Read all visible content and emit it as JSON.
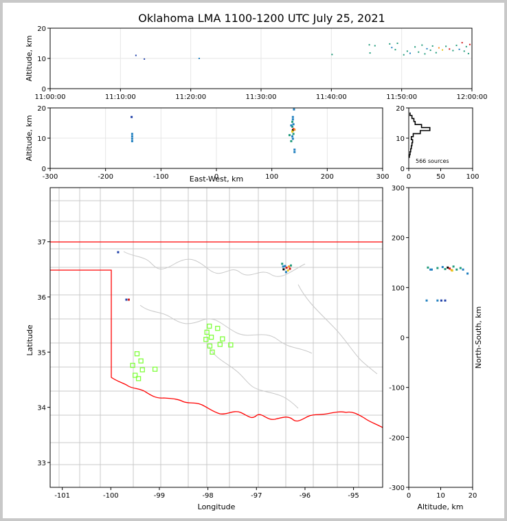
{
  "title": "Oklahoma LMA 1100-1200 UTC July 25, 2021",
  "colors": {
    "border": "#ff0000",
    "county": "#c8c8c8",
    "station": "#7fff3a",
    "grid": "#e6e6e6"
  },
  "source_count_label": "566 sources",
  "chart_data": [
    {
      "name": "time-altitude",
      "type": "scatter",
      "xlabel": "",
      "ylabel": "Altitude, km",
      "x_tick_labels": [
        "11:00:00",
        "11:10:00",
        "11:20:00",
        "11:30:00",
        "11:40:00",
        "11:50:00",
        "12:00:00"
      ],
      "xlim_minutes_after_1100": [
        0,
        60
      ],
      "ylim": [
        0,
        20
      ],
      "y_ticks": [
        0,
        10,
        20
      ],
      "points": [
        {
          "t": 12.2,
          "alt": 11.0,
          "c": "#1f3fa8"
        },
        {
          "t": 13.4,
          "alt": 9.8,
          "c": "#1f3fa8"
        },
        {
          "t": 21.2,
          "alt": 10.0,
          "c": "#1f7fbf"
        },
        {
          "t": 40.1,
          "alt": 11.3,
          "c": "#1f9a7a"
        },
        {
          "t": 45.4,
          "alt": 14.5,
          "c": "#1f9a7a"
        },
        {
          "t": 45.5,
          "alt": 11.8,
          "c": "#1f9a7a"
        },
        {
          "t": 46.2,
          "alt": 14.2,
          "c": "#1f9a7a"
        },
        {
          "t": 48.3,
          "alt": 14.8,
          "c": "#1f9a7a"
        },
        {
          "t": 48.6,
          "alt": 13.6,
          "c": "#1f7fbf"
        },
        {
          "t": 49.1,
          "alt": 12.9,
          "c": "#1f9a7a"
        },
        {
          "t": 49.4,
          "alt": 15.0,
          "c": "#1f9a7a"
        },
        {
          "t": 50.3,
          "alt": 11.2,
          "c": "#1f9a7a"
        },
        {
          "t": 50.8,
          "alt": 12.4,
          "c": "#1f9a7a"
        },
        {
          "t": 51.2,
          "alt": 11.7,
          "c": "#1f7fbf"
        },
        {
          "t": 51.9,
          "alt": 13.8,
          "c": "#1f9a7a"
        },
        {
          "t": 52.4,
          "alt": 12.1,
          "c": "#1f9a7a"
        },
        {
          "t": 52.9,
          "alt": 14.4,
          "c": "#1f9a7a"
        },
        {
          "t": 53.3,
          "alt": 11.5,
          "c": "#1f9a7a"
        },
        {
          "t": 53.6,
          "alt": 13.2,
          "c": "#1f7fbf"
        },
        {
          "t": 54.1,
          "alt": 12.7,
          "c": "#1f9a7a"
        },
        {
          "t": 54.4,
          "alt": 14.1,
          "c": "#1f9a7a"
        },
        {
          "t": 54.9,
          "alt": 11.9,
          "c": "#1f9a7a"
        },
        {
          "t": 55.3,
          "alt": 13.5,
          "c": "#ff8c1a"
        },
        {
          "t": 55.8,
          "alt": 12.8,
          "c": "#e8c81a"
        },
        {
          "t": 56.3,
          "alt": 14.0,
          "c": "#1f9a7a"
        },
        {
          "t": 56.8,
          "alt": 13.1,
          "c": "#d01818"
        },
        {
          "t": 57.3,
          "alt": 12.6,
          "c": "#1f9a7a"
        },
        {
          "t": 57.8,
          "alt": 14.3,
          "c": "#1f9a7a"
        },
        {
          "t": 58.2,
          "alt": 13.0,
          "c": "#1f7fbf"
        },
        {
          "t": 58.6,
          "alt": 15.2,
          "c": "#d01818"
        },
        {
          "t": 58.9,
          "alt": 12.4,
          "c": "#1f9a7a"
        },
        {
          "t": 59.2,
          "alt": 13.9,
          "c": "#1f9a7a"
        },
        {
          "t": 59.5,
          "alt": 11.6,
          "c": "#1f9a7a"
        },
        {
          "t": 59.7,
          "alt": 14.6,
          "c": "#d01818"
        }
      ]
    },
    {
      "name": "ew-altitude",
      "type": "scatter",
      "xlabel": "East-West, km",
      "ylabel": "Altitude, km",
      "xlim": [
        -300,
        300
      ],
      "x_ticks": [
        -300,
        -200,
        -100,
        0,
        100,
        200,
        300
      ],
      "ylim": [
        0,
        20
      ],
      "y_ticks": [
        0,
        10,
        20
      ],
      "points": [
        {
          "x": -153,
          "alt": 17.0,
          "c": "#1f3fa8"
        },
        {
          "x": -152,
          "alt": 11.4,
          "c": "#1f7fbf"
        },
        {
          "x": -152,
          "alt": 10.6,
          "c": "#1f7fbf"
        },
        {
          "x": -152,
          "alt": 9.8,
          "c": "#1f7fbf"
        },
        {
          "x": -152,
          "alt": 9.0,
          "c": "#1f7fbf"
        },
        {
          "x": 140,
          "alt": 19.5,
          "c": "#1f7fbf"
        },
        {
          "x": 138,
          "alt": 17.0,
          "c": "#1f7fbf"
        },
        {
          "x": 138,
          "alt": 16.2,
          "c": "#1f7fbf"
        },
        {
          "x": 137,
          "alt": 15.4,
          "c": "#1f9a7a"
        },
        {
          "x": 139,
          "alt": 14.6,
          "c": "#1f7fbf"
        },
        {
          "x": 137,
          "alt": 13.8,
          "c": "#1f9a7a"
        },
        {
          "x": 139,
          "alt": 13.0,
          "c": "#d01818"
        },
        {
          "x": 138,
          "alt": 12.6,
          "c": "#000000"
        },
        {
          "x": 137,
          "alt": 12.2,
          "c": "#e8c81a"
        },
        {
          "x": 139,
          "alt": 11.4,
          "c": "#1f9a7a"
        },
        {
          "x": 137,
          "alt": 10.6,
          "c": "#1f7fbf"
        },
        {
          "x": 138,
          "alt": 9.8,
          "c": "#1f7fbf"
        },
        {
          "x": 135,
          "alt": 9.0,
          "c": "#1f9a7a"
        },
        {
          "x": 141,
          "alt": 6.2,
          "c": "#1f7fbf"
        },
        {
          "x": 141,
          "alt": 5.4,
          "c": "#1f7fbf"
        },
        {
          "x": 132,
          "alt": 11.0,
          "c": "#1f9a7a"
        },
        {
          "x": 135,
          "alt": 14.2,
          "c": "#1f7fbf"
        },
        {
          "x": 141,
          "alt": 12.8,
          "c": "#ff8c1a"
        }
      ]
    },
    {
      "name": "altitude-histogram",
      "type": "line",
      "xlabel": "",
      "ylabel": "",
      "xlim": [
        0,
        100
      ],
      "x_ticks": [
        0,
        50,
        100
      ],
      "ylim": [
        0,
        20
      ],
      "y_ticks": [
        0,
        10,
        20
      ],
      "altitude_km": [
        4,
        5,
        6,
        7,
        8,
        9,
        10,
        11,
        12,
        13,
        14,
        15,
        16,
        17,
        18
      ],
      "counts": [
        1,
        2,
        3,
        4,
        5,
        6,
        4,
        7,
        18,
        33,
        20,
        10,
        8,
        5,
        2
      ]
    },
    {
      "name": "plan-view-map",
      "type": "scatter",
      "xlabel": "Longitude",
      "ylabel": "Latitude",
      "xlim": [
        -101.25,
        -94.4
      ],
      "x_ticks": [
        -101,
        -100,
        -99,
        -98,
        -97,
        -96,
        -95
      ],
      "ylim": [
        32.55,
        37.98
      ],
      "y_ticks": [
        33,
        34,
        35,
        36,
        37
      ],
      "stations": [
        {
          "lon": -99.46,
          "lat": 34.97
        },
        {
          "lon": -99.38,
          "lat": 34.84
        },
        {
          "lon": -99.55,
          "lat": 34.76
        },
        {
          "lon": -99.35,
          "lat": 34.68
        },
        {
          "lon": -99.09,
          "lat": 34.69
        },
        {
          "lon": -99.5,
          "lat": 34.58
        },
        {
          "lon": -99.43,
          "lat": 34.52
        },
        {
          "lon": -97.97,
          "lat": 35.47
        },
        {
          "lon": -98.02,
          "lat": 35.36
        },
        {
          "lon": -97.93,
          "lat": 35.27
        },
        {
          "lon": -98.04,
          "lat": 35.23
        },
        {
          "lon": -97.8,
          "lat": 35.43
        },
        {
          "lon": -97.7,
          "lat": 35.24
        },
        {
          "lon": -97.96,
          "lat": 35.11
        },
        {
          "lon": -97.75,
          "lat": 35.14
        },
        {
          "lon": -97.53,
          "lat": 35.13
        },
        {
          "lon": -97.91,
          "lat": 35.0
        }
      ],
      "sources": [
        {
          "lon": -99.85,
          "lat": 36.81,
          "c": "#1f3fa8"
        },
        {
          "lon": -99.68,
          "lat": 35.95,
          "c": "#1f3fa8"
        },
        {
          "lon": -99.63,
          "lat": 35.95,
          "c": "#d01818"
        },
        {
          "lon": -96.47,
          "lat": 36.6,
          "c": "#1f9a7a"
        },
        {
          "lon": -96.41,
          "lat": 36.56,
          "c": "#1f7fbf"
        },
        {
          "lon": -96.38,
          "lat": 36.53,
          "c": "#d01818"
        },
        {
          "lon": -96.33,
          "lat": 36.55,
          "c": "#ff8c1a"
        },
        {
          "lon": -96.44,
          "lat": 36.5,
          "c": "#000000"
        },
        {
          "lon": -96.35,
          "lat": 36.48,
          "c": "#e8c81a"
        },
        {
          "lon": -96.29,
          "lat": 36.57,
          "c": "#1f9a7a"
        },
        {
          "lon": -96.39,
          "lat": 36.45,
          "c": "#1f7fbf"
        },
        {
          "lon": -96.31,
          "lat": 36.51,
          "c": "#d01818"
        },
        {
          "lon": -96.45,
          "lat": 36.55,
          "c": "#1f7fbf"
        }
      ]
    },
    {
      "name": "altitude-ns",
      "type": "scatter",
      "xlabel": "Altitude, km",
      "ylabel": "North-South, km",
      "xlim": [
        0,
        20
      ],
      "x_ticks": [
        0,
        10,
        20
      ],
      "ylim": [
        -300,
        300
      ],
      "y_ticks": [
        -300,
        -200,
        -100,
        0,
        100,
        200,
        300
      ],
      "points": [
        {
          "alt": 6.0,
          "y": 140,
          "c": "#1f9a7a"
        },
        {
          "alt": 7.2,
          "y": 136,
          "c": "#1f7fbf"
        },
        {
          "alt": 9.0,
          "y": 139,
          "c": "#1f9a7a"
        },
        {
          "alt": 10.6,
          "y": 141,
          "c": "#1f7fbf"
        },
        {
          "alt": 11.4,
          "y": 137,
          "c": "#1f9a7a"
        },
        {
          "alt": 12.2,
          "y": 140,
          "c": "#000000"
        },
        {
          "alt": 12.8,
          "y": 138,
          "c": "#d01818"
        },
        {
          "alt": 13.4,
          "y": 135,
          "c": "#ff8c1a"
        },
        {
          "alt": 14.0,
          "y": 142,
          "c": "#1f9a7a"
        },
        {
          "alt": 15.0,
          "y": 136,
          "c": "#1f9a7a"
        },
        {
          "alt": 16.2,
          "y": 139,
          "c": "#1f9a7a"
        },
        {
          "alt": 17.0,
          "y": 136,
          "c": "#1f7fbf"
        },
        {
          "alt": 18.4,
          "y": 128,
          "c": "#1f7fbf"
        },
        {
          "alt": 13.6,
          "y": 134,
          "c": "#e8c81a"
        },
        {
          "alt": 5.6,
          "y": 74,
          "c": "#1f7fbf"
        },
        {
          "alt": 9.0,
          "y": 74,
          "c": "#1f7fbf"
        },
        {
          "alt": 10.2,
          "y": 74,
          "c": "#1f3fa8"
        },
        {
          "alt": 11.4,
          "y": 74,
          "c": "#1f3fa8"
        },
        {
          "alt": 6.8,
          "y": 136,
          "c": "#1f7fbf"
        }
      ]
    }
  ]
}
